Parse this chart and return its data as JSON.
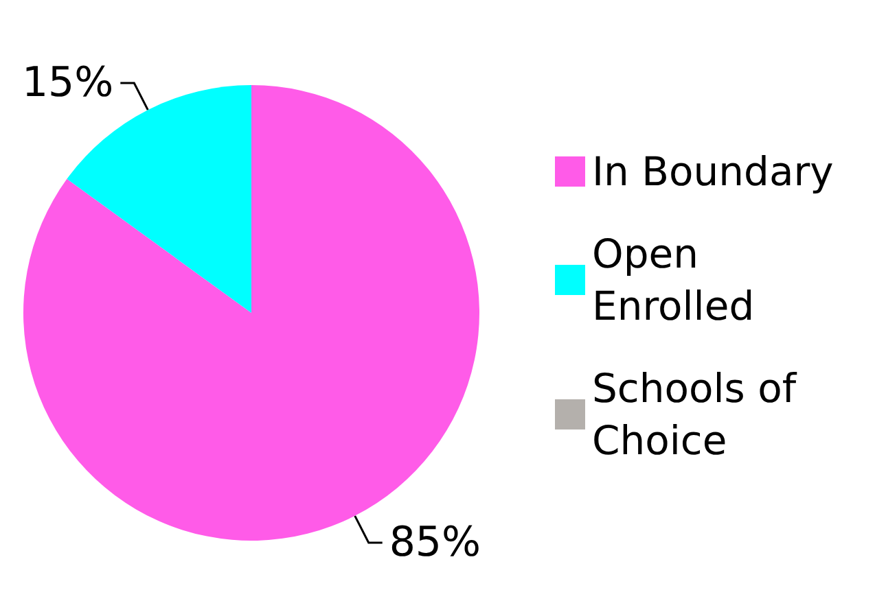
{
  "chart_data": {
    "type": "pie",
    "categories": [
      "In Boundary",
      "Open Enrolled",
      "Schools of Choice"
    ],
    "values": [
      85,
      15,
      0
    ],
    "colors": [
      "#ff5be8",
      "#00ffff",
      "#b4b0ac"
    ],
    "value_labels": [
      "85%",
      "15%",
      null
    ],
    "legend": "right"
  }
}
